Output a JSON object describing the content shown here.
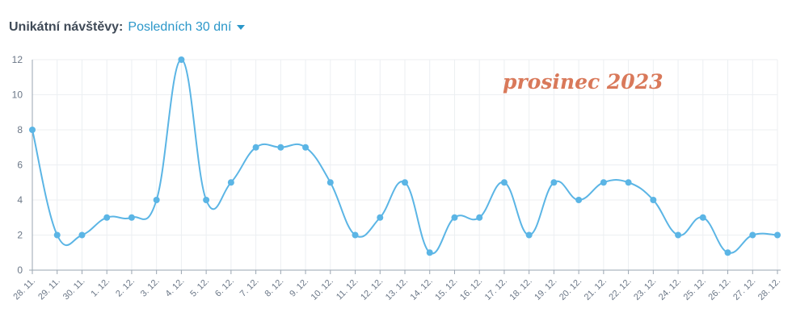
{
  "header": {
    "label": "Unikátní návštěvy:",
    "range_value": "Posledních 30 dní",
    "range_icon": "caret-down-icon"
  },
  "colors": {
    "line": "#5bb5e5",
    "grid": "#eceff2",
    "axis": "#9aa5b1",
    "stamp": "#d9795a",
    "header_label": "#3f4a57",
    "header_link": "#2b97c9"
  },
  "chart_data": {
    "type": "line",
    "title": "",
    "xlabel": "",
    "ylabel": "",
    "ylim": [
      0,
      12
    ],
    "yticks": [
      0,
      2,
      4,
      6,
      8,
      10,
      12
    ],
    "grid": true,
    "annotation": "prosinec 2023",
    "categories": [
      "28. 11.",
      "29. 11.",
      "30. 11.",
      "1. 12.",
      "2. 12.",
      "3. 12.",
      "4. 12.",
      "5. 12.",
      "6. 12.",
      "7. 12.",
      "8. 12.",
      "9. 12.",
      "10. 12.",
      "11. 12.",
      "12. 12.",
      "13. 12.",
      "14. 12.",
      "15. 12.",
      "16. 12.",
      "17. 12.",
      "18. 12.",
      "19. 12.",
      "20. 12.",
      "21. 12.",
      "22. 12.",
      "23. 12.",
      "24. 12.",
      "25. 12.",
      "26. 12.",
      "27. 12.",
      "28. 12."
    ],
    "series": [
      {
        "values": [
          8,
          2,
          2,
          3,
          3,
          4,
          12,
          4,
          5,
          7,
          7,
          7,
          5,
          2,
          3,
          5,
          1,
          3,
          3,
          5,
          2,
          5,
          4,
          5,
          5,
          4,
          2,
          3,
          1,
          2,
          2
        ]
      }
    ]
  }
}
